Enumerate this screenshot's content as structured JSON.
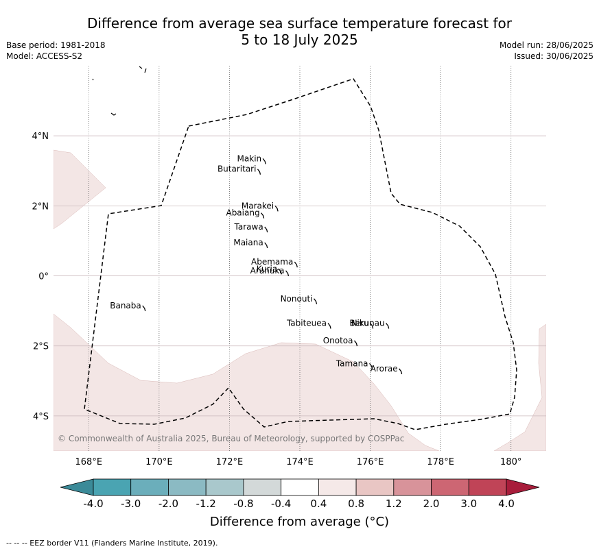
{
  "title": {
    "line1": "Difference from average sea surface temperature forecast for",
    "line2": "5 to 18 July 2025"
  },
  "meta": {
    "base_period": "Base period: 1981-2018",
    "model": "Model: ACCESS-S2",
    "model_run": "Model run: 28/06/2025",
    "issued": "Issued: 30/06/2025"
  },
  "map": {
    "lon_range": [
      167,
      181
    ],
    "lat_range": [
      -5,
      6
    ],
    "lon_ticks": [
      {
        "lon": 168,
        "label": "168°E"
      },
      {
        "lon": 170,
        "label": "170°E"
      },
      {
        "lon": 172,
        "label": "172°E"
      },
      {
        "lon": 174,
        "label": "174°E"
      },
      {
        "lon": 176,
        "label": "176°E"
      },
      {
        "lon": 178,
        "label": "178°E"
      },
      {
        "lon": 180,
        "label": "180°"
      }
    ],
    "lat_ticks": [
      {
        "lat": 4,
        "label": "4°N"
      },
      {
        "lat": 2,
        "label": "2°N"
      },
      {
        "lat": 0,
        "label": "0°"
      },
      {
        "lat": -2,
        "label": "2°S"
      },
      {
        "lat": -4,
        "label": "4°S"
      }
    ],
    "anomaly_fill_color": "#f3e6e5",
    "islands": [
      {
        "name": "Makin",
        "lon": 172.95,
        "lat": 3.35
      },
      {
        "name": "Butaritari",
        "lon": 172.8,
        "lat": 3.05
      },
      {
        "name": "Marakei",
        "lon": 173.3,
        "lat": 2.0
      },
      {
        "name": "Abaiang",
        "lon": 172.9,
        "lat": 1.8
      },
      {
        "name": "Tarawa",
        "lon": 173.0,
        "lat": 1.4
      },
      {
        "name": "Maiana",
        "lon": 173.0,
        "lat": 0.95
      },
      {
        "name": "Abemama",
        "lon": 173.85,
        "lat": 0.4
      },
      {
        "name": "Kuria",
        "lon": 173.4,
        "lat": 0.2
      },
      {
        "name": "Aranuka",
        "lon": 173.6,
        "lat": 0.15
      },
      {
        "name": "Nonouti",
        "lon": 174.4,
        "lat": -0.65
      },
      {
        "name": "Tabiteuea",
        "lon": 174.8,
        "lat": -1.35
      },
      {
        "name": "Beru",
        "lon": 176.0,
        "lat": -1.35
      },
      {
        "name": "Nikunau",
        "lon": 176.45,
        "lat": -1.35
      },
      {
        "name": "Onotoa",
        "lon": 175.55,
        "lat": -1.85
      },
      {
        "name": "Tamana",
        "lon": 175.98,
        "lat": -2.5
      },
      {
        "name": "Arorae",
        "lon": 176.82,
        "lat": -2.65
      },
      {
        "name": "Banaba",
        "lon": 169.53,
        "lat": -0.85
      }
    ],
    "copyright": "© Commonwealth of Australia 2025, Bureau of Meteorology, supported by COSPPac"
  },
  "colorbar": {
    "title": "Difference from average (°C)",
    "ticks": [
      "-4.0",
      "-3.0",
      "-2.0",
      "-1.2",
      "-0.8",
      "-0.4",
      "0.4",
      "0.8",
      "1.2",
      "2.0",
      "3.0",
      "4.0"
    ],
    "colors": [
      "#3b8a98",
      "#4aa4b2",
      "#6baebb",
      "#8bbac3",
      "#a9c8cc",
      "#d3d9d9",
      "#ffffff",
      "#f5e9e8",
      "#e9c6c4",
      "#d8939a",
      "#cd6673",
      "#c04457",
      "#a81d3b"
    ]
  },
  "footnote": "--  --  -- EEZ border V11 (Flanders Marine Institute, 2019)."
}
